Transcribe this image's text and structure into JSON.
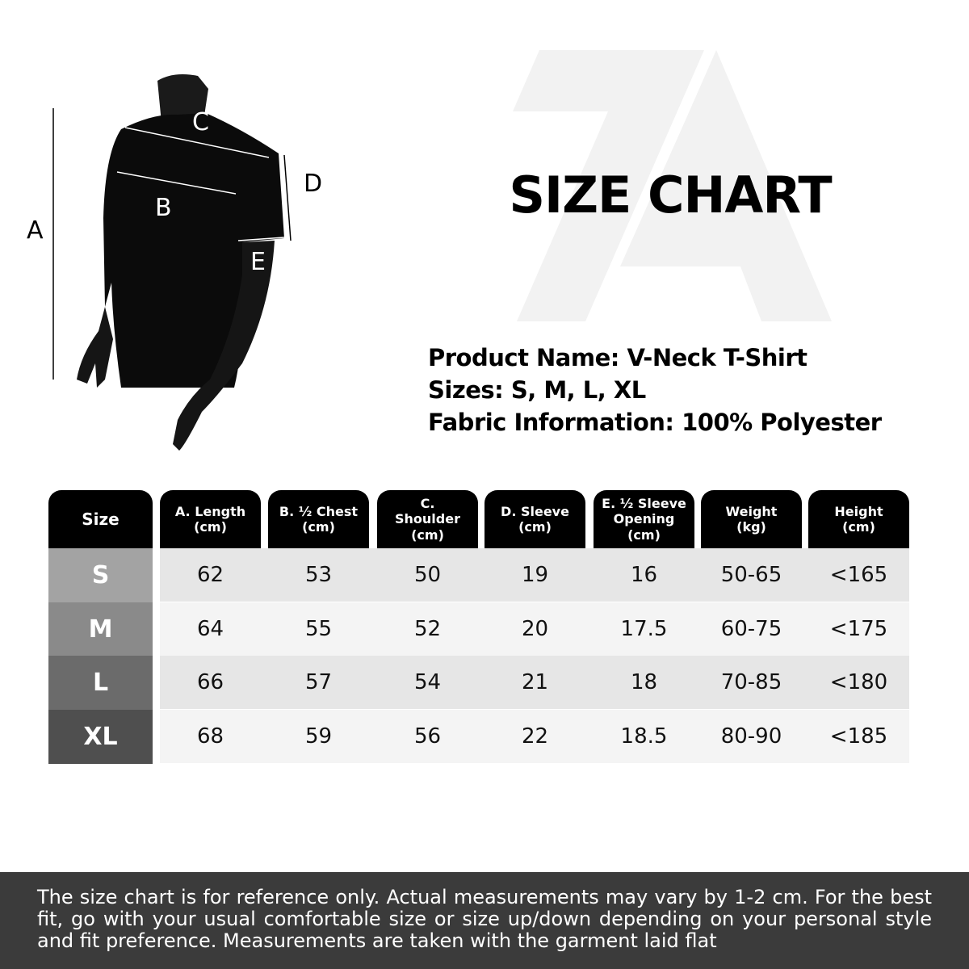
{
  "title": "SIZE CHART",
  "watermark": "7A",
  "product": {
    "name_line": "Product Name: V-Neck T-Shirt",
    "sizes_line": "Sizes: S, M, L, XL",
    "fabric_line": "Fabric Information: 100% Polyester"
  },
  "diagram_labels": {
    "a": "A",
    "b": "B",
    "c": "C",
    "d": "D",
    "e": "E"
  },
  "table": {
    "headers": [
      "Size",
      "A. Length\n(cm)",
      "B. ½ Chest\n(cm)",
      "C.\nShoulder\n(cm)",
      "D. Sleeve\n(cm)",
      "E. ½ Sleeve\nOpening\n(cm)",
      "Weight\n(kg)",
      "Height\n(cm)"
    ],
    "rows": [
      {
        "size": "S",
        "values": [
          "62",
          "53",
          "50",
          "19",
          "16",
          "50-65",
          "<165"
        ],
        "color": "#a3a3a3"
      },
      {
        "size": "M",
        "values": [
          "64",
          "55",
          "52",
          "20",
          "17.5",
          "60-75",
          "<175"
        ],
        "color": "#8a8a8a"
      },
      {
        "size": "L",
        "values": [
          "66",
          "57",
          "54",
          "21",
          "18",
          "70-85",
          "<180"
        ],
        "color": "#6b6b6b"
      },
      {
        "size": "XL",
        "values": [
          "68",
          "59",
          "56",
          "22",
          "18.5",
          "80-90",
          "<185"
        ],
        "color": "#4f4f4f"
      }
    ]
  },
  "footer": "The size chart is for reference only. Actual measurements may vary by 1-2 cm. For the best fit, go with your usual comfortable size or size up/down depending on your personal style and fit preference. Measurements are taken with the garment laid flat"
}
